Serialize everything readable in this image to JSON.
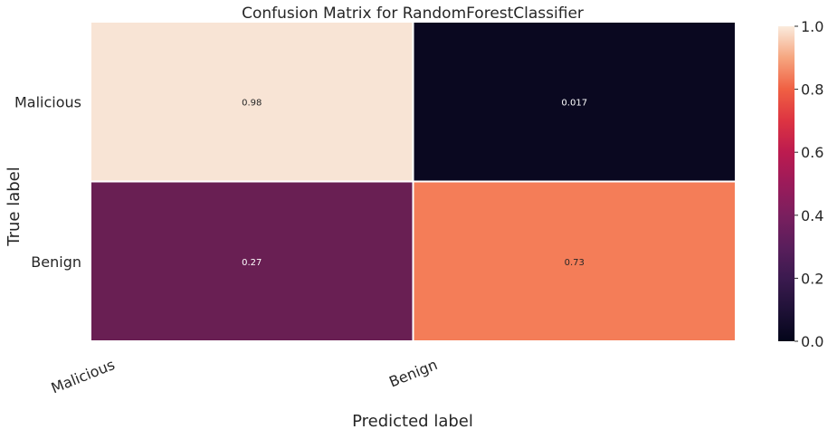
{
  "chart_data": {
    "type": "heatmap",
    "title": "Confusion Matrix for RandomForestClassifier",
    "xlabel": "Predicted label",
    "ylabel": "True label",
    "x_categories": [
      "Malicious",
      "Benign"
    ],
    "y_categories": [
      "Malicious",
      "Benign"
    ],
    "values": [
      [
        0.98,
        0.017
      ],
      [
        0.27,
        0.73
      ]
    ],
    "cell_labels": [
      [
        "0.98",
        "0.017"
      ],
      [
        "0.27",
        "0.73"
      ]
    ],
    "colorbar": {
      "range": [
        0,
        1
      ],
      "ticks": [
        0.0,
        0.2,
        0.4,
        0.6,
        0.8,
        1.0
      ],
      "tick_labels": [
        "0.0",
        "0.2",
        "0.4",
        "0.6",
        "0.8",
        "1.0"
      ],
      "colormap": "rocket"
    },
    "colors": {
      "cell_0_0": "#f8e4d5",
      "cell_0_1": "#0a0820",
      "cell_1_0": "#691f53",
      "cell_1_1": "#f47d58",
      "grid_lines": "#ffffff"
    },
    "grid": false,
    "legend": "colorbar-right"
  }
}
